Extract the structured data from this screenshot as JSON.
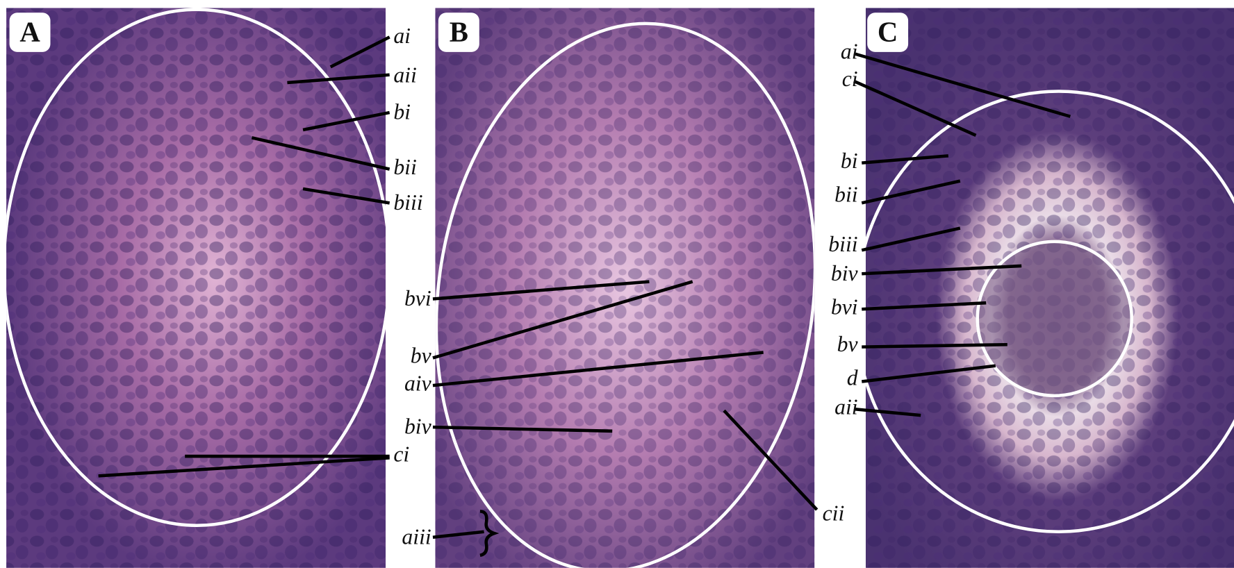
{
  "panels": [
    {
      "letter": "A",
      "labels": [
        "ai",
        "aii",
        "bi",
        "bii",
        "biii",
        "ci"
      ]
    },
    {
      "letter": "B",
      "labels": [
        "bvi",
        "bv",
        "aiv",
        "biv",
        "aiii",
        "cii"
      ]
    },
    {
      "letter": "C",
      "labels": [
        "ai",
        "ci",
        "bi",
        "bii",
        "biii",
        "biv",
        "bvi",
        "bv",
        "d",
        "aii"
      ]
    }
  ]
}
